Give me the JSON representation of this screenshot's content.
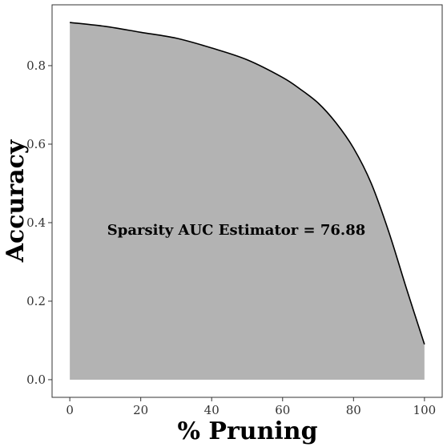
{
  "chart_data": {
    "type": "area",
    "xlabel": "% Pruning",
    "ylabel": "Accuracy",
    "title": "",
    "annotation": "Sparsity AUC Estimator = 76.88",
    "xlim": [
      -5,
      105
    ],
    "ylim": [
      -0.045,
      0.955
    ],
    "x_ticks": [
      0,
      20,
      40,
      60,
      80,
      100
    ],
    "y_ticks": [
      0.0,
      0.2,
      0.4,
      0.6,
      0.8
    ],
    "y_tick_labels": [
      "0.0",
      "0.2",
      "0.4",
      "0.6",
      "0.8"
    ],
    "grid": false,
    "fill_color": "#b3b3b3",
    "line_color": "#000000",
    "x": [
      0,
      10,
      20,
      30,
      40,
      50,
      60,
      65,
      70,
      75,
      80,
      85,
      90,
      95,
      100
    ],
    "y": [
      0.91,
      0.9,
      0.885,
      0.87,
      0.845,
      0.815,
      0.77,
      0.74,
      0.705,
      0.655,
      0.59,
      0.5,
      0.375,
      0.23,
      0.09
    ]
  }
}
